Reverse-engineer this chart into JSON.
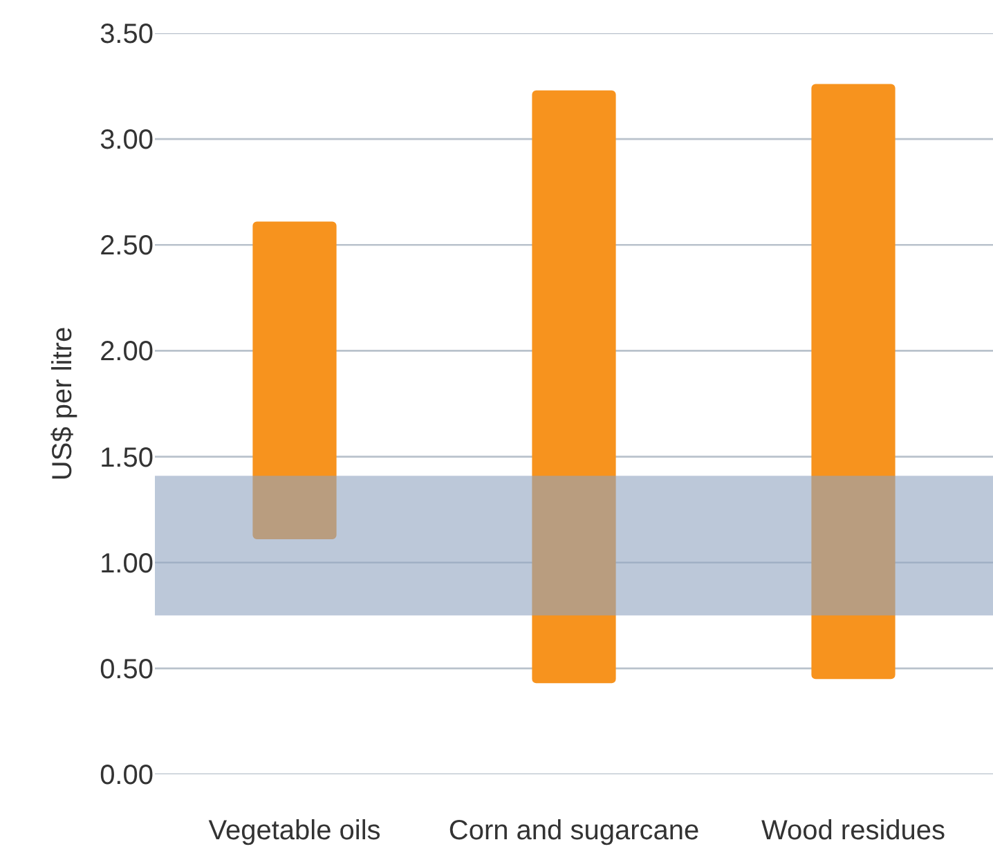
{
  "chart_data": {
    "type": "bar",
    "ylabel": "US$ per litre",
    "categories": [
      "Vegetable oils",
      "Corn and sugarcane",
      "Wood residues"
    ],
    "base": [
      1.11,
      0.43,
      0.45
    ],
    "values": [
      1.5,
      2.8,
      2.81
    ],
    "color": "#f7931e",
    "ylim": [
      0,
      3.5
    ],
    "yticks": [
      {
        "value": 0,
        "label": "0.00"
      },
      {
        "value": 0.5,
        "label": "0.50"
      },
      {
        "value": 1,
        "label": "1.00"
      },
      {
        "value": 1.5,
        "label": "1.50"
      },
      {
        "value": 2,
        "label": "2.00"
      },
      {
        "value": 2.5,
        "label": "2.50"
      },
      {
        "value": 3,
        "label": "3.00"
      },
      {
        "value": 3.5,
        "label": "3.50"
      }
    ],
    "grid": "y",
    "bands": [
      {
        "axis": "y",
        "from": 0.75,
        "to": 1.41,
        "color": "#8fa3bf"
      }
    ]
  }
}
